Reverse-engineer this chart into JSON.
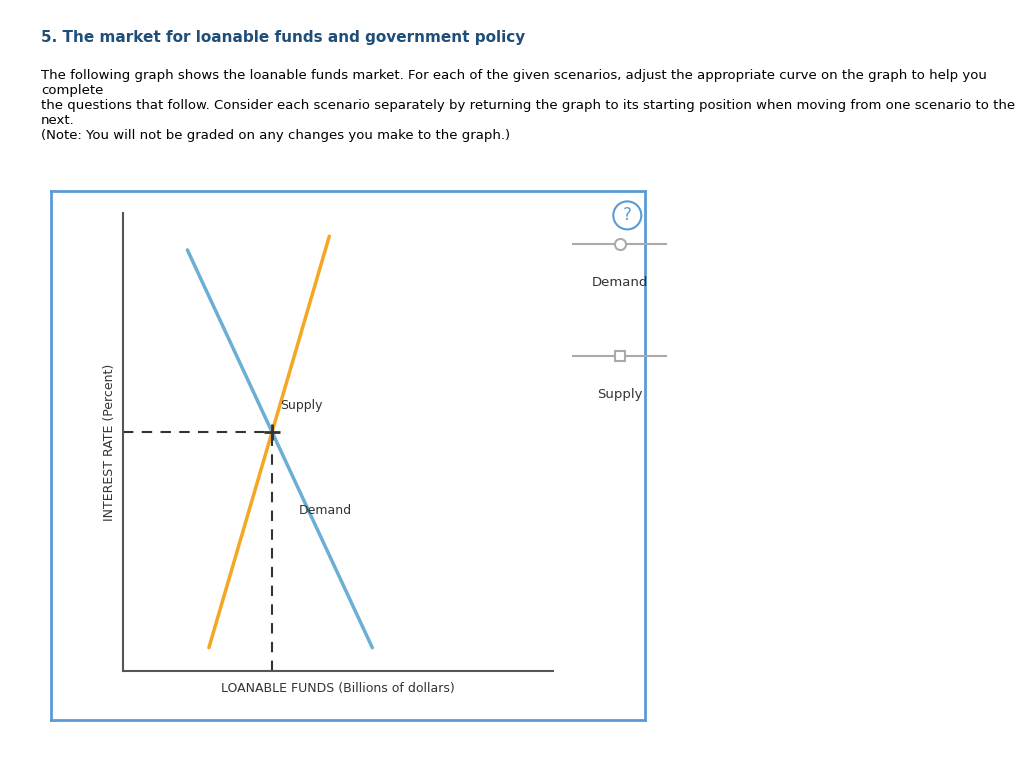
{
  "title": "5. The market for loanable funds and government policy",
  "description_line1": "The following graph shows the loanable funds market. For each of the given scenarios, adjust the appropriate curve on the graph to help you complete",
  "description_line2": "the questions that follow. Consider each scenario separately by returning the graph to its starting position when moving from one scenario to the next.",
  "description_line3": "(​Note: You will not be graded on any changes you make to the graph.)",
  "xlabel": "LOANABLE FUNDS (Billions of dollars)",
  "ylabel": "INTEREST RATE (Percent)",
  "supply_color": "#F5A623",
  "demand_color": "#6BAED6",
  "dashed_color": "#333333",
  "background_color": "#ffffff",
  "border_color": "#5B9BD5",
  "outer_border_color": "#C8B87A",
  "legend_demand_label": "Demand",
  "legend_supply_label": "Supply",
  "supply_label": "Supply",
  "demand_label": "Demand",
  "question_mark_color": "#5B9BD5"
}
